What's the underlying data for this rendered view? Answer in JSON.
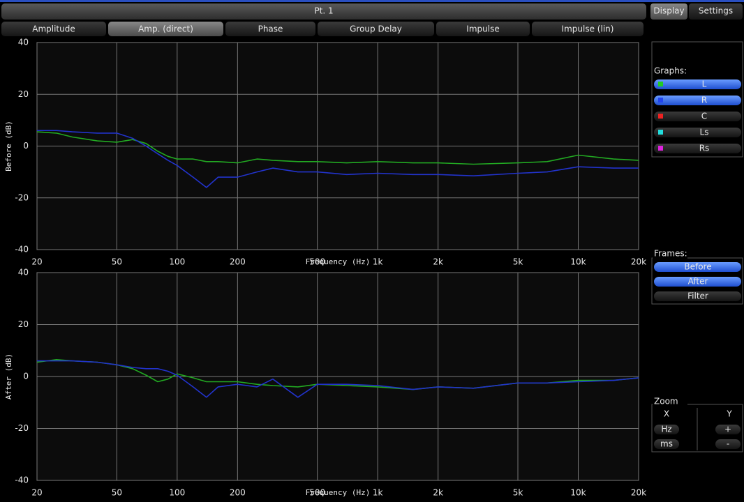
{
  "header": {
    "title": "Pt. 1"
  },
  "tabs": [
    {
      "label": "Amplitude"
    },
    {
      "label": "Amp. (direct)",
      "active": true
    },
    {
      "label": "Phase"
    },
    {
      "label": "Group Delay"
    },
    {
      "label": "Impulse"
    },
    {
      "label": "Impulse (lin)"
    }
  ],
  "side_tabs": [
    {
      "label": "Display",
      "active": true
    },
    {
      "label": "Settings"
    }
  ],
  "graphs": {
    "title": "Graphs:",
    "items": [
      {
        "label": "L",
        "color": "#22cc22",
        "active": true
      },
      {
        "label": "R",
        "color": "#2244ee",
        "active": true
      },
      {
        "label": "C",
        "color": "#ee2222"
      },
      {
        "label": "Ls",
        "color": "#22dddd"
      },
      {
        "label": "Rs",
        "color": "#dd22dd"
      }
    ]
  },
  "frames": {
    "title": "Frames:",
    "items": [
      {
        "label": "Before",
        "active": true
      },
      {
        "label": "After",
        "active": true
      },
      {
        "label": "Filter"
      }
    ]
  },
  "zoom": {
    "title": "Zoom",
    "x_label": "X",
    "y_label": "Y",
    "x_buttons": [
      "Hz",
      "ms"
    ],
    "y_buttons": [
      "+",
      "-"
    ]
  },
  "chart_data": [
    {
      "type": "line",
      "y_label": "Before (dB)",
      "x_label": "Frequency (Hz)",
      "log_x": true,
      "grid": true,
      "x": [
        20,
        25,
        30,
        40,
        50,
        60,
        70,
        80,
        90,
        100,
        120,
        140,
        160,
        200,
        250,
        300,
        400,
        500,
        700,
        1000,
        1500,
        2000,
        3000,
        5000,
        7000,
        10000,
        15000,
        20000
      ],
      "xlim": [
        20,
        20000
      ],
      "xticks": [
        20,
        50,
        100,
        200,
        500,
        {
          "value": 1000,
          "label": "1k"
        },
        {
          "value": 2000,
          "label": "2k"
        },
        {
          "value": 5000,
          "label": "5k"
        },
        {
          "value": 10000,
          "label": "10k"
        },
        {
          "value": 20000,
          "label": "20k"
        }
      ],
      "ylim": [
        -40,
        40
      ],
      "yticks": [
        -40,
        -20,
        0,
        20,
        40
      ],
      "series": [
        {
          "color": "#22aa22",
          "values": [
            5.5,
            5,
            3.5,
            2,
            1.5,
            2.5,
            1,
            -2,
            -4,
            -5,
            -5,
            -6,
            -6,
            -6.5,
            -5,
            -5.5,
            -6,
            -6,
            -6.5,
            -6,
            -6.5,
            -6.5,
            -7,
            -6.5,
            -6,
            -3.5,
            -5,
            -5.5
          ]
        },
        {
          "color": "#2233cc",
          "values": [
            6,
            6,
            5.5,
            5,
            5,
            3,
            0,
            -3,
            -5.5,
            -7.5,
            -12,
            -16,
            -12,
            -12,
            -10,
            -8.5,
            -10,
            -10,
            -11,
            -10.5,
            -11,
            -11,
            -11.5,
            -10.5,
            -10,
            -8,
            -8.5,
            -8.5
          ]
        }
      ]
    },
    {
      "type": "line",
      "y_label": "After (dB)",
      "x_label": "Frequency (Hz)",
      "log_x": true,
      "grid": true,
      "x": [
        20,
        25,
        30,
        40,
        50,
        60,
        70,
        80,
        90,
        100,
        120,
        140,
        160,
        200,
        250,
        300,
        400,
        500,
        700,
        1000,
        1500,
        2000,
        3000,
        5000,
        7000,
        10000,
        15000,
        20000
      ],
      "xlim": [
        20,
        20000
      ],
      "xticks": [
        20,
        50,
        100,
        200,
        500,
        {
          "value": 1000,
          "label": "1k"
        },
        {
          "value": 2000,
          "label": "2k"
        },
        {
          "value": 5000,
          "label": "5k"
        },
        {
          "value": 10000,
          "label": "10k"
        },
        {
          "value": 20000,
          "label": "20k"
        }
      ],
      "ylim": [
        -40,
        40
      ],
      "yticks": [
        -40,
        -20,
        0,
        20,
        40
      ],
      "series": [
        {
          "color": "#22aa22",
          "values": [
            5.5,
            6.5,
            6,
            5.5,
            4.5,
            3,
            0.5,
            -2,
            -1,
            1,
            -0.5,
            -2,
            -2,
            -2,
            -3,
            -3.5,
            -4,
            -3,
            -3.5,
            -4,
            -5,
            -4,
            -4.5,
            -2.5,
            -2.5,
            -1.5,
            -1.5,
            -0.5
          ]
        },
        {
          "color": "#2233cc",
          "values": [
            6,
            6,
            6,
            5.5,
            4.5,
            3.5,
            3,
            3,
            2,
            0.5,
            -4,
            -8,
            -4,
            -3,
            -4,
            -1,
            -8,
            -3,
            -3,
            -3.5,
            -5,
            -4,
            -4.5,
            -2.5,
            -2.5,
            -2,
            -1.5,
            -0.5
          ]
        }
      ]
    }
  ]
}
